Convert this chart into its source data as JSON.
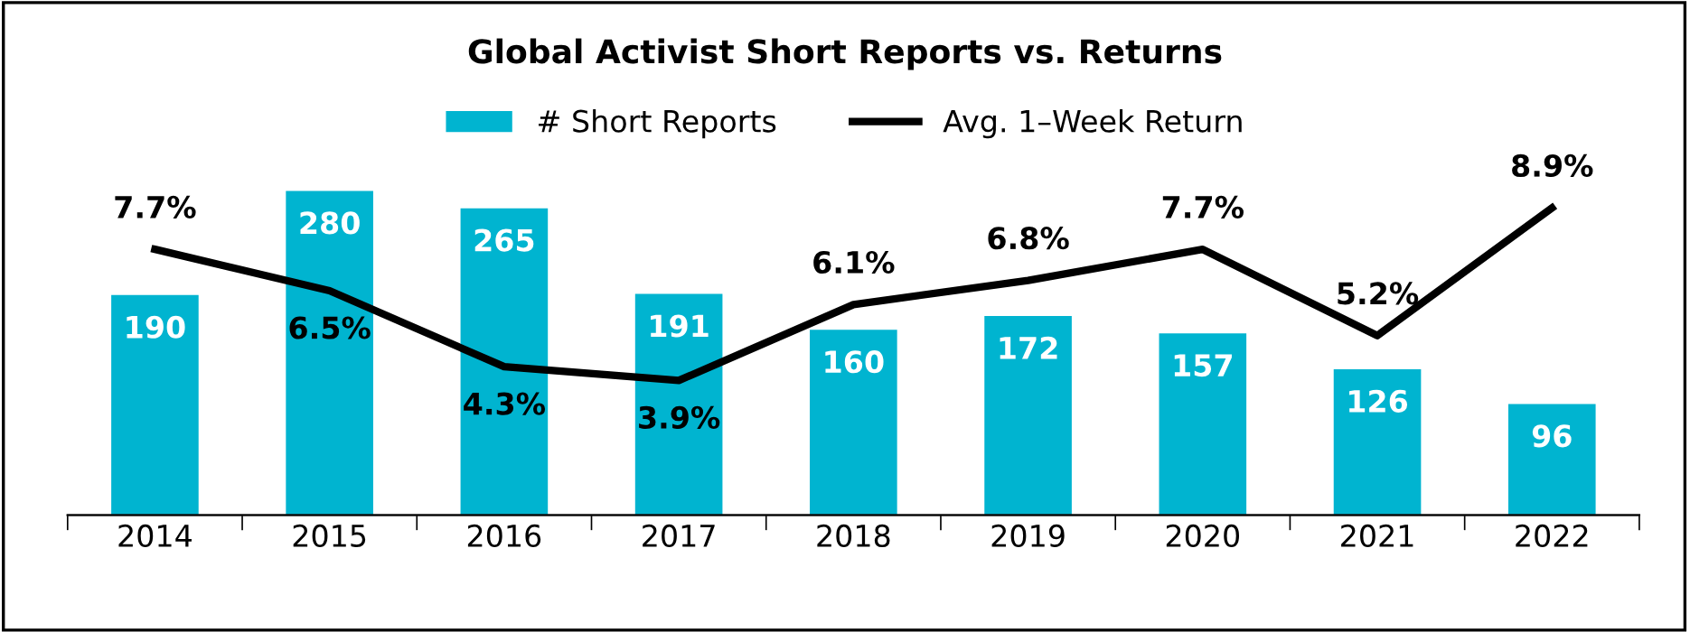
{
  "chart_data": {
    "type": "bar",
    "title": "Global Activist Short Reports vs. Returns",
    "categories": [
      "2014",
      "2015",
      "2016",
      "2017",
      "2018",
      "2019",
      "2020",
      "2021",
      "2022"
    ],
    "series": [
      {
        "name": "# Short Reports",
        "color": "#00b4d0",
        "values": [
          190,
          280,
          265,
          191,
          160,
          172,
          157,
          126,
          96
        ]
      },
      {
        "name": "Avg. 1–Week Return",
        "type": "line",
        "axis": "y2",
        "color": "#000000",
        "values": [
          7.7,
          6.5,
          4.3,
          3.9,
          6.1,
          6.8,
          7.7,
          5.2,
          8.9
        ],
        "value_labels": [
          "7.7%",
          "6.5%",
          "4.3%",
          "3.9%",
          "6.1%",
          "6.8%",
          "7.7%",
          "5.2%",
          "8.9%"
        ]
      }
    ],
    "data_labels": true,
    "legend": "top",
    "grid": false,
    "tick_labels": "x",
    "marker": "none",
    "line_style": "solid"
  }
}
